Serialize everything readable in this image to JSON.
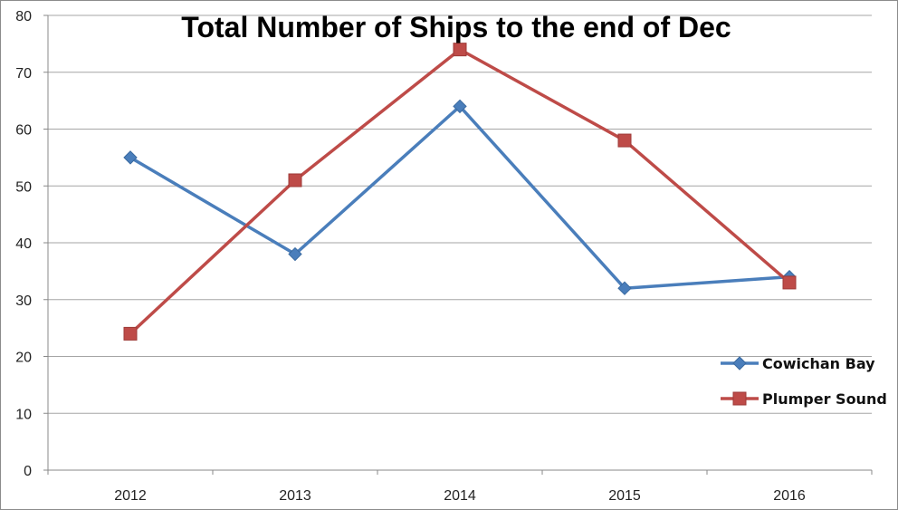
{
  "chart_data": {
    "type": "line",
    "title": "Total Number of Ships to the end of Dec",
    "xlabel": "",
    "ylabel": "",
    "categories": [
      "2012",
      "2013",
      "2014",
      "2015",
      "2016"
    ],
    "ylim": [
      0,
      80
    ],
    "yticks": [
      0,
      10,
      20,
      30,
      40,
      50,
      60,
      70,
      80
    ],
    "grid": true,
    "legend_position": "right",
    "series": [
      {
        "name": "Cowichan Bay",
        "values": [
          55,
          38,
          64,
          32,
          34
        ],
        "color": "#4a7ebb",
        "marker": "diamond"
      },
      {
        "name": "Plumper Sound",
        "values": [
          24,
          51,
          74,
          58,
          33
        ],
        "color": "#be4b48",
        "marker": "square"
      }
    ]
  }
}
